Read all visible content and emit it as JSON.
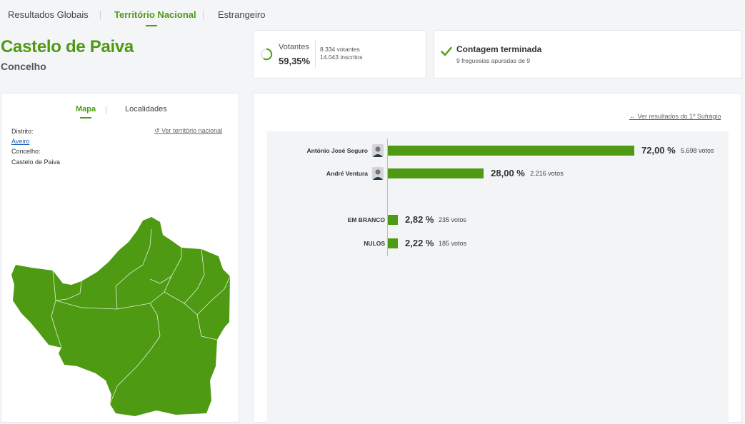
{
  "tabs": [
    {
      "label": "Resultados Globais"
    },
    {
      "label": "Território Nacional"
    },
    {
      "label": "Estrangeiro"
    }
  ],
  "location": {
    "title": "Castelo de Paiva",
    "type": "Concelho"
  },
  "votantes": {
    "label": "Votantes",
    "pct": "59,35%",
    "fraction": 0.5935,
    "voters": "8.334 votantes",
    "registered": "14.043 inscritos"
  },
  "contagem": {
    "title": "Contagem terminada",
    "sub": "9 freguesias apuradas de 9"
  },
  "map_panel": {
    "tabs": [
      {
        "label": "Mapa"
      },
      {
        "label": "Localidades"
      }
    ],
    "district_label": "Distrito:",
    "district": "Aveiro",
    "concelho_label": "Concelho:",
    "concelho": "Castelo de Paiva",
    "back_link": "Ver território nacional",
    "map_color": "#4e9a12"
  },
  "results_panel": {
    "back_link": "Ver resultados do 1º Sufrágio"
  },
  "chart_data": {
    "type": "bar",
    "orientation": "horizontal",
    "categories": [
      "António José Seguro",
      "André Ventura",
      "EM BRANCO",
      "NULOS"
    ],
    "values": [
      72.0,
      28.0,
      2.82,
      2.22
    ],
    "pct_labels": [
      "72,00 %",
      "28,00 %",
      "2,82 %",
      "2,22 %"
    ],
    "votes": [
      "5.698 votos",
      "2.216 votos",
      "235 votos",
      "185 votos"
    ],
    "color": "#4e9a12"
  }
}
